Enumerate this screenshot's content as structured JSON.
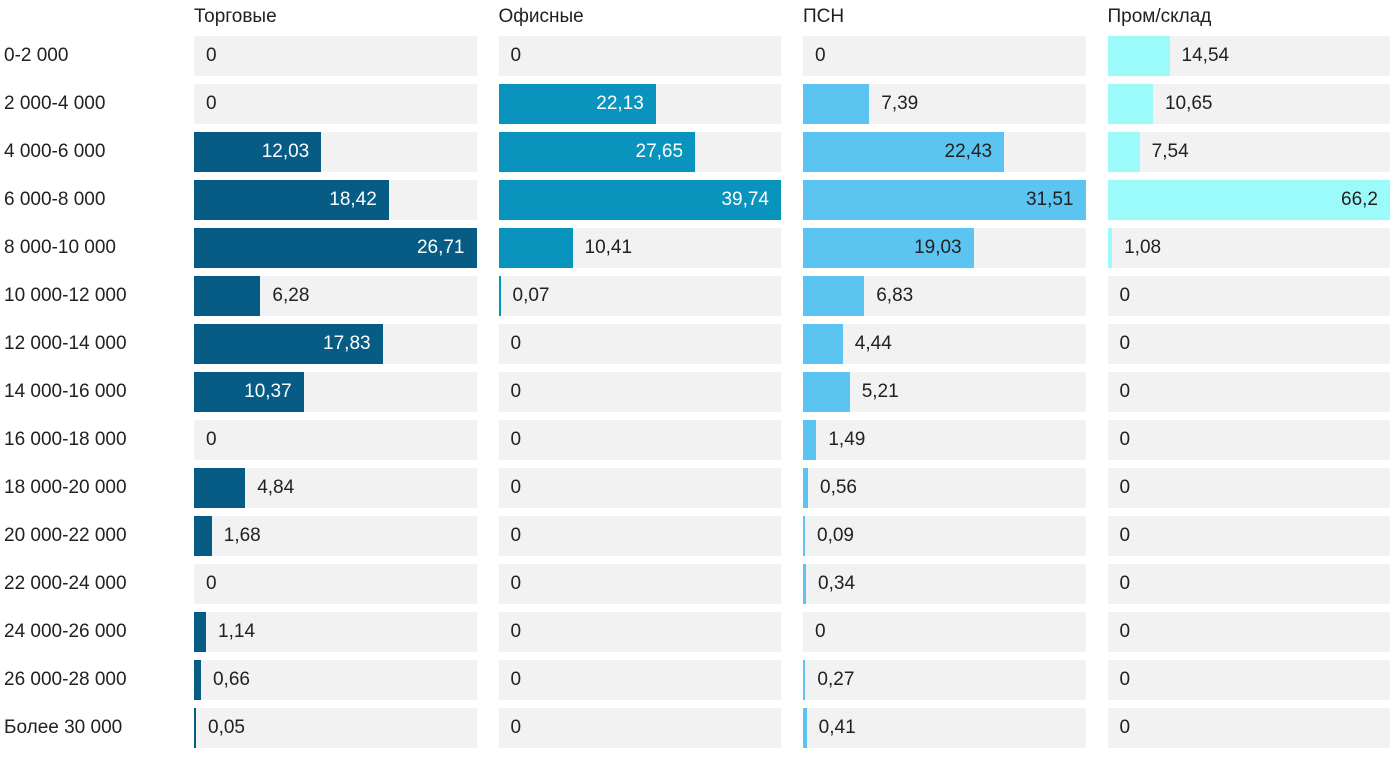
{
  "chart_data": {
    "type": "bar",
    "orientation": "horizontal",
    "title": "",
    "xlabel": "",
    "ylabel": "",
    "grid": false,
    "legend_position": "column-headers-top",
    "scaling": "each column scaled independently to its own max value",
    "value_format": "comma-decimal",
    "track_color": "#f2f2f2",
    "text_color": "#212121",
    "categories": [
      "0-2 000",
      "2 000-4 000",
      "4 000-6 000",
      "6 000-8 000",
      "8 000-10 000",
      "10 000-12 000",
      "12 000-14 000",
      "14 000-16 000",
      "16 000-18 000",
      "18 000-20 000",
      "20 000-22 000",
      "22 000-24 000",
      "24 000-26 000",
      "26 000-28 000",
      "Более 30 000"
    ],
    "series": [
      {
        "name": "Торговые",
        "color": "#065c84",
        "inside_label_color": "#ffffff",
        "values": [
          0,
          0,
          12.03,
          18.42,
          26.71,
          6.28,
          17.83,
          10.37,
          0,
          4.84,
          1.68,
          0,
          1.14,
          0.66,
          0.05
        ]
      },
      {
        "name": "Офисные",
        "color": "#0894bd",
        "inside_label_color": "#ffffff",
        "values": [
          0,
          22.13,
          27.65,
          39.74,
          10.41,
          0.07,
          0,
          0,
          0,
          0,
          0,
          0,
          0,
          0,
          0
        ]
      },
      {
        "name": "ПСН",
        "color": "#5bc4f0",
        "inside_label_color": "#222222",
        "values": [
          0,
          7.39,
          22.43,
          31.51,
          19.03,
          6.83,
          4.44,
          5.21,
          1.49,
          0.56,
          0.09,
          0.34,
          0,
          0.27,
          0.41
        ]
      },
      {
        "name": "Пром/склад",
        "color": "#9bfbfb",
        "inside_label_color": "#222222",
        "values": [
          14.54,
          10.65,
          7.54,
          66.2,
          1.08,
          0,
          0,
          0,
          0,
          0,
          0,
          0,
          0,
          0,
          0
        ]
      }
    ]
  }
}
